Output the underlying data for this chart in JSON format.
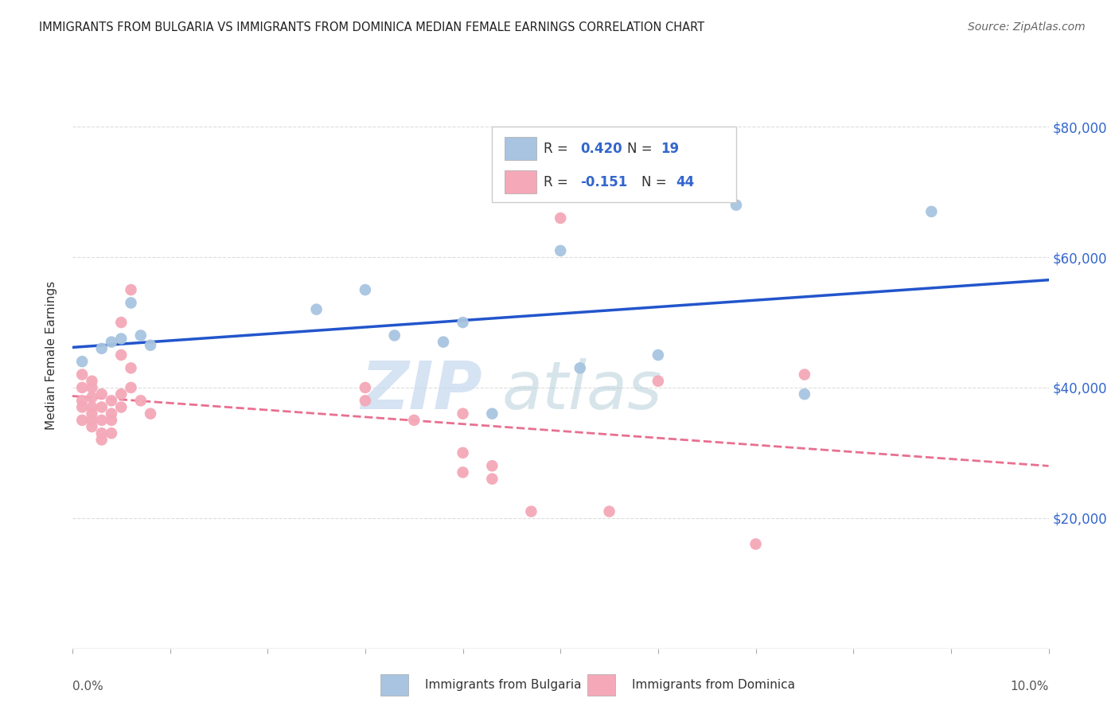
{
  "title": "IMMIGRANTS FROM BULGARIA VS IMMIGRANTS FROM DOMINICA MEDIAN FEMALE EARNINGS CORRELATION CHART",
  "source": "Source: ZipAtlas.com",
  "ylabel": "Median Female Earnings",
  "xlim": [
    0.0,
    0.1
  ],
  "ylim": [
    0,
    90000
  ],
  "background_color": "#ffffff",
  "bulgaria_color": "#a8c4e0",
  "dominica_color": "#f4a8b8",
  "bulgaria_line_color": "#2255cc",
  "dominica_line_color": "#e87090",
  "bulgaria_x": [
    0.001,
    0.003,
    0.004,
    0.005,
    0.006,
    0.007,
    0.008,
    0.025,
    0.03,
    0.033,
    0.038,
    0.04,
    0.043,
    0.05,
    0.052,
    0.06,
    0.068,
    0.075,
    0.088
  ],
  "bulgaria_y": [
    44000,
    46000,
    47000,
    47500,
    53000,
    48000,
    46500,
    52000,
    55000,
    48000,
    47000,
    50000,
    36000,
    61000,
    43000,
    45000,
    68000,
    39000,
    67000
  ],
  "dominica_x": [
    0.001,
    0.001,
    0.001,
    0.001,
    0.001,
    0.002,
    0.002,
    0.002,
    0.002,
    0.002,
    0.002,
    0.002,
    0.003,
    0.003,
    0.003,
    0.003,
    0.003,
    0.004,
    0.004,
    0.004,
    0.004,
    0.005,
    0.005,
    0.005,
    0.005,
    0.006,
    0.006,
    0.006,
    0.007,
    0.008,
    0.03,
    0.03,
    0.035,
    0.04,
    0.04,
    0.04,
    0.043,
    0.043,
    0.047,
    0.05,
    0.055,
    0.06,
    0.07,
    0.075
  ],
  "dominica_y": [
    42000,
    40000,
    38000,
    37000,
    35000,
    41000,
    40000,
    38500,
    37000,
    36000,
    35000,
    34000,
    39000,
    37000,
    35000,
    33000,
    32000,
    38000,
    36000,
    35000,
    33000,
    50000,
    45000,
    39000,
    37000,
    55000,
    43000,
    40000,
    38000,
    36000,
    40000,
    38000,
    35000,
    36000,
    30000,
    27000,
    28000,
    26000,
    21000,
    66000,
    21000,
    41000,
    16000,
    42000
  ]
}
